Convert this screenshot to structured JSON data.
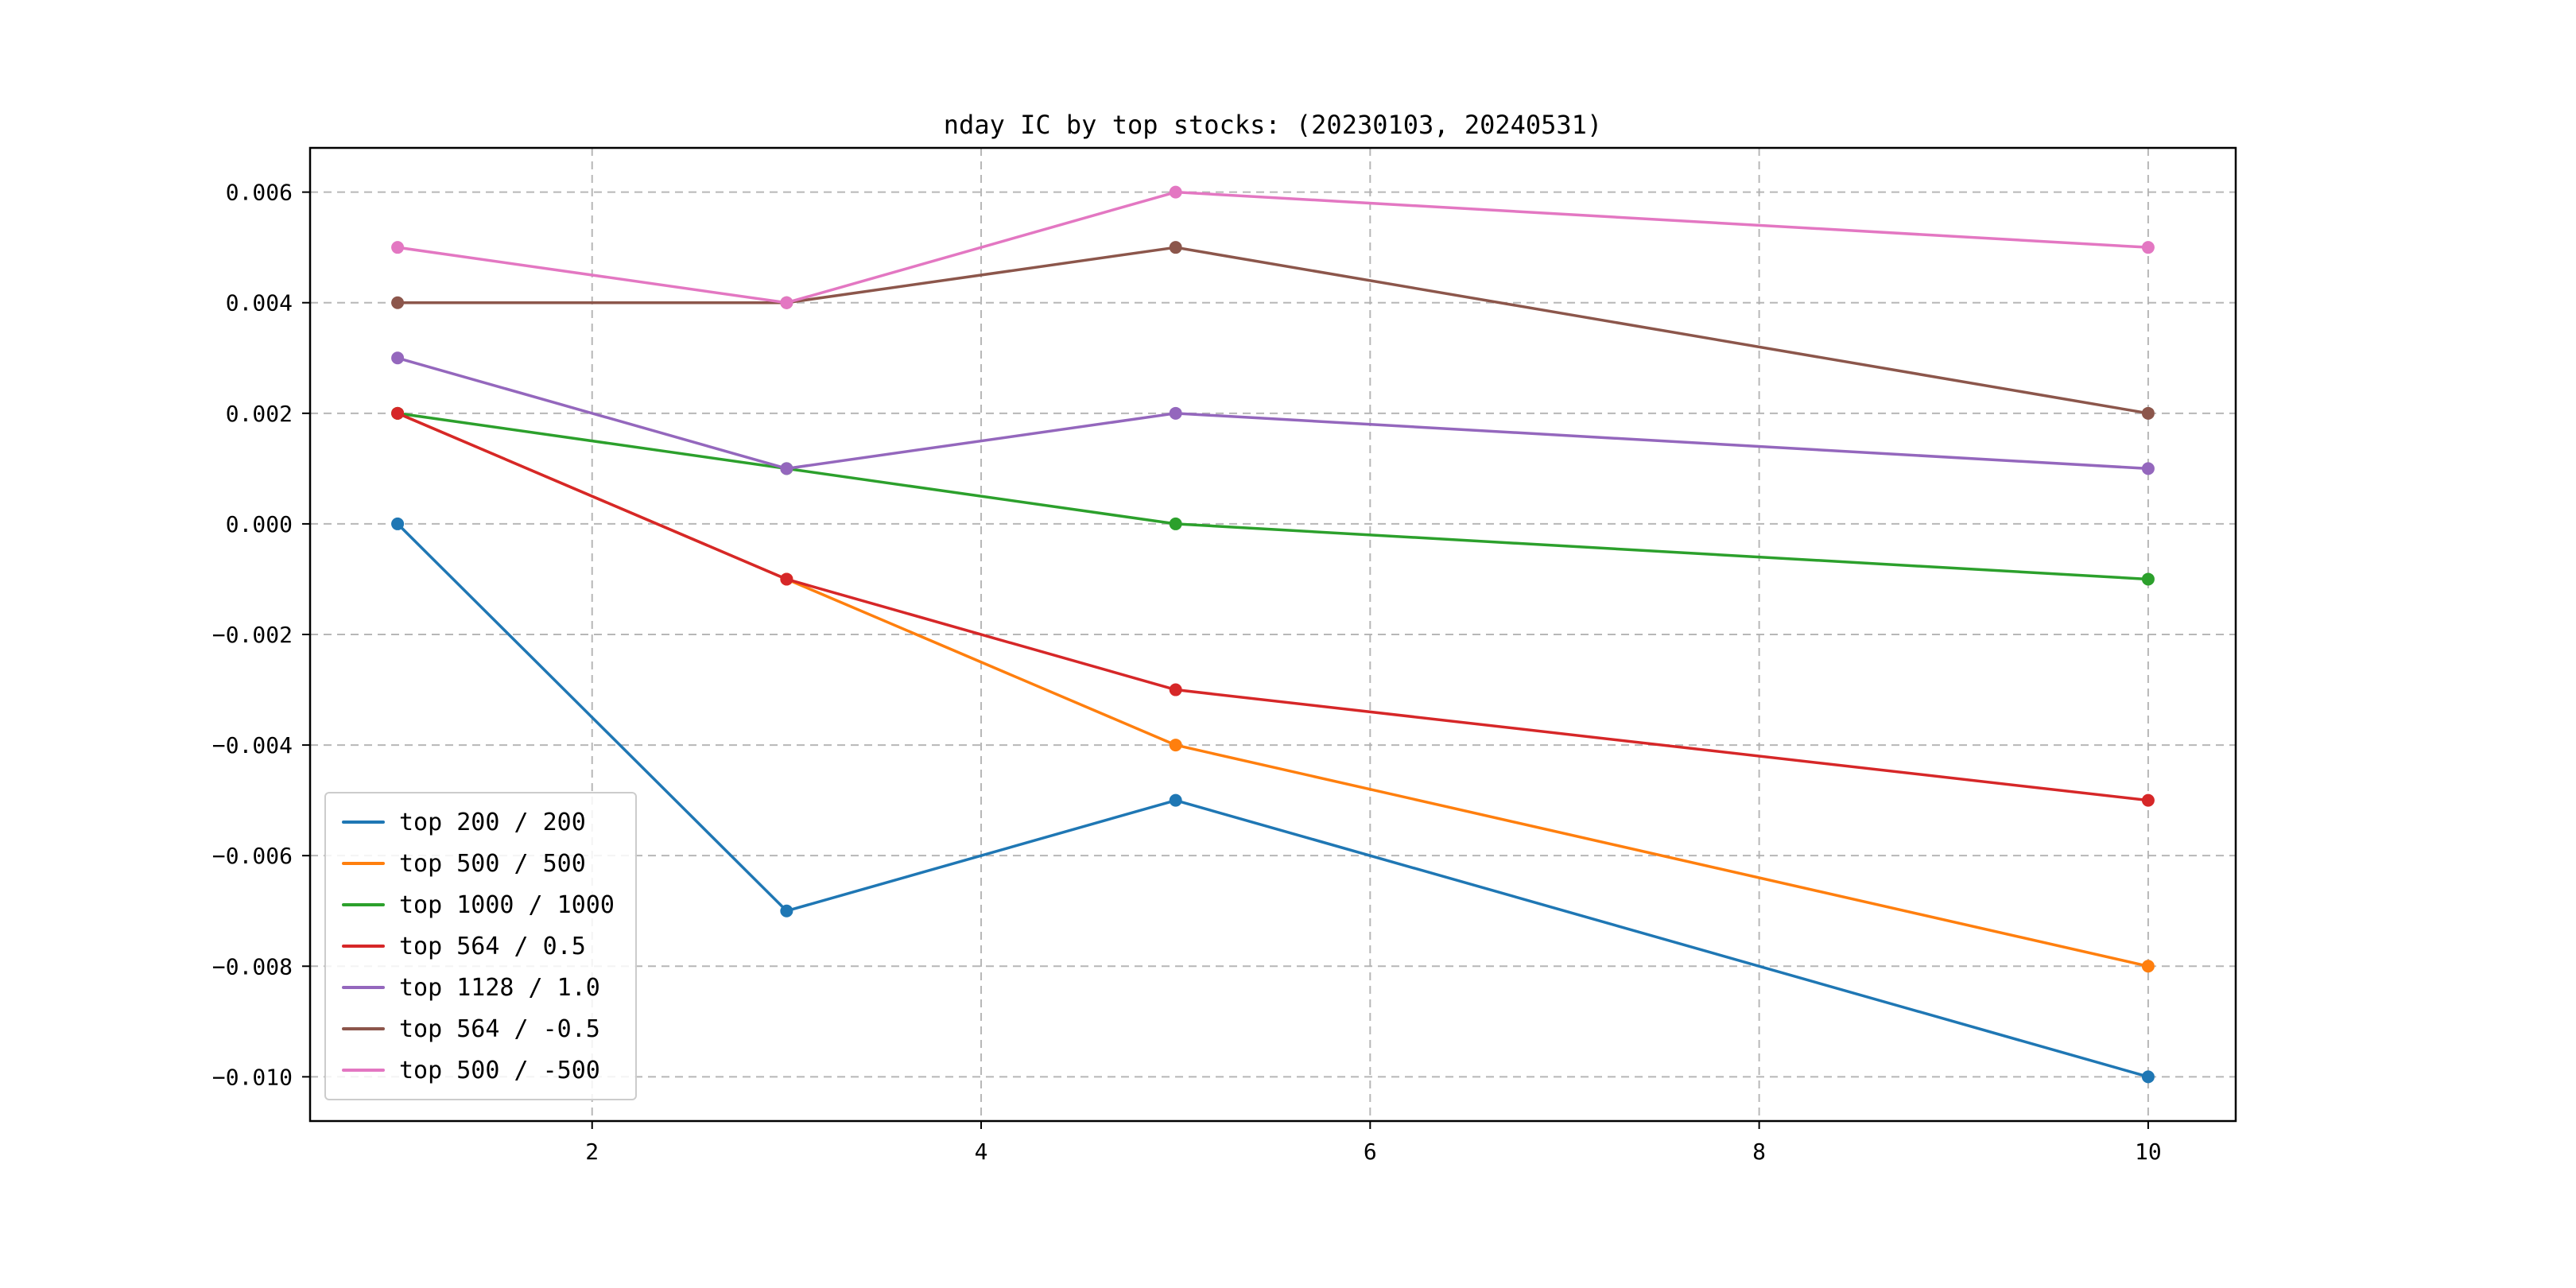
{
  "chart_data": {
    "type": "line",
    "title": "nday IC by top stocks: (20230103, 20240531)",
    "x": [
      1,
      3,
      5,
      10
    ],
    "series": [
      {
        "name": "top 200 / 200",
        "color": "#1f77b4",
        "values": [
          0.0,
          -0.007,
          -0.005,
          -0.01
        ]
      },
      {
        "name": "top 500 / 500",
        "color": "#ff7f0e",
        "values": [
          0.002,
          -0.001,
          -0.004,
          -0.008
        ]
      },
      {
        "name": "top 1000 / 1000",
        "color": "#2ca02c",
        "values": [
          0.002,
          0.001,
          0.0,
          -0.001
        ]
      },
      {
        "name": "top 564 / 0.5",
        "color": "#d62728",
        "values": [
          0.002,
          -0.001,
          -0.003,
          -0.005
        ]
      },
      {
        "name": "top 1128 / 1.0",
        "color": "#9467bd",
        "values": [
          0.003,
          0.001,
          0.002,
          0.001
        ]
      },
      {
        "name": "top 564 / -0.5",
        "color": "#8c564b",
        "values": [
          0.004,
          0.004,
          0.005,
          0.002
        ]
      },
      {
        "name": "top 500 / -500",
        "color": "#e377c2",
        "values": [
          0.005,
          0.004,
          0.006,
          0.005
        ]
      }
    ],
    "xlabel": "",
    "ylabel": "",
    "xlim": [
      0.55,
      10.45
    ],
    "ylim": [
      -0.0108,
      0.0068
    ],
    "xticks": [
      2,
      4,
      6,
      8,
      10
    ],
    "yticks": [
      0.006,
      0.004,
      0.002,
      0.0,
      -0.002,
      -0.004,
      -0.006,
      -0.008,
      -0.01
    ],
    "grid": true,
    "grid_style": "dashed",
    "grid_color": "#b0b0b0",
    "legend_position": "lower left",
    "marker": "circle",
    "axes_edge_color": "#000000",
    "background_color": "#ffffff"
  }
}
